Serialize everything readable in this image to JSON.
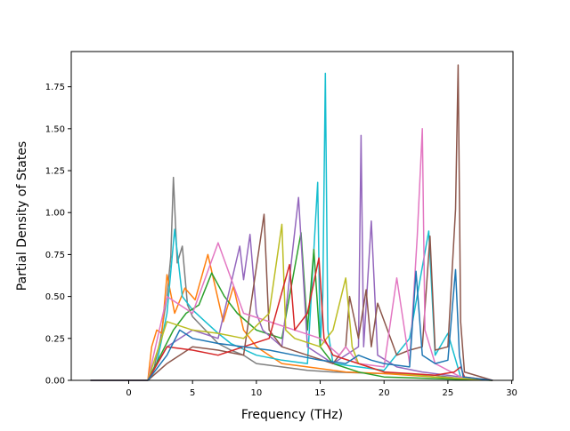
{
  "chart_data": {
    "type": "line",
    "title": "",
    "xlabel": "Frequency (THz)",
    "ylabel": "Partial Density of States",
    "xlim": [
      -4.5,
      30.1
    ],
    "ylim": [
      0.0,
      1.96
    ],
    "xticks": [
      0,
      5,
      10,
      15,
      20,
      25,
      30
    ],
    "yticks": [
      0.0,
      0.25,
      0.5,
      0.75,
      1.0,
      1.25,
      1.5,
      1.75
    ],
    "xtick_labels": [
      "0",
      "5",
      "10",
      "15",
      "20",
      "25",
      "30"
    ],
    "ytick_labels": [
      "0.00",
      "0.25",
      "0.50",
      "0.75",
      "1.00",
      "1.25",
      "1.50",
      "1.75"
    ],
    "grid": false,
    "legend": "none",
    "series_colors": [
      "#1f77b4",
      "#ff7f0e",
      "#2ca02c",
      "#d62728",
      "#9467bd",
      "#8c564b",
      "#e377c2",
      "#7f7f7f",
      "#bcbd22",
      "#17becf"
    ],
    "series": [
      {
        "color": "#7f7f7f",
        "x": [
          -3,
          1.5,
          2,
          2.5,
          3,
          3.3,
          3.5,
          3.8,
          4.2,
          4.6,
          5,
          6,
          7,
          8,
          9,
          10,
          12,
          14,
          16,
          20,
          24,
          26,
          28.5
        ],
        "y": [
          0,
          0,
          0.08,
          0.25,
          0.5,
          0.74,
          1.21,
          0.7,
          0.8,
          0.45,
          0.38,
          0.3,
          0.22,
          0.18,
          0.15,
          0.1,
          0.08,
          0.06,
          0.05,
          0.04,
          0.03,
          0.01,
          0
        ]
      },
      {
        "color": "#ff7f0e",
        "x": [
          -3,
          1.5,
          1.8,
          2.2,
          2.6,
          3,
          3.6,
          4.4,
          5.2,
          6.2,
          7.4,
          8.2,
          9,
          10,
          11,
          12,
          14,
          17,
          20,
          24,
          26,
          28.5
        ],
        "y": [
          0,
          0,
          0.2,
          0.3,
          0.28,
          0.63,
          0.4,
          0.55,
          0.48,
          0.75,
          0.35,
          0.56,
          0.3,
          0.2,
          0.15,
          0.1,
          0.08,
          0.05,
          0.04,
          0.02,
          0.01,
          0
        ]
      },
      {
        "color": "#17becf",
        "x": [
          -3,
          1.5,
          2.2,
          3,
          3.6,
          4.2,
          5,
          6,
          7,
          8,
          10,
          12,
          14,
          14.8,
          15,
          15.2,
          15.4,
          15.6,
          16,
          18,
          20,
          22,
          23.5,
          24,
          25,
          26,
          28.5
        ],
        "y": [
          0,
          0,
          0.1,
          0.4,
          0.9,
          0.5,
          0.42,
          0.35,
          0.28,
          0.22,
          0.15,
          0.12,
          0.1,
          1.18,
          0.2,
          0.5,
          1.83,
          0.3,
          0.1,
          0.08,
          0.06,
          0.25,
          0.89,
          0.15,
          0.28,
          0.02,
          0
        ]
      },
      {
        "color": "#2ca02c",
        "x": [
          -3,
          1.5,
          2.5,
          3.5,
          4.5,
          5.5,
          6.5,
          7.5,
          8.5,
          10,
          12,
          13.5,
          14,
          14.5,
          15,
          16,
          18,
          20,
          28.5
        ],
        "y": [
          0,
          0,
          0.15,
          0.3,
          0.4,
          0.45,
          0.64,
          0.5,
          0.4,
          0.3,
          0.25,
          0.88,
          0.3,
          0.78,
          0.2,
          0.1,
          0.05,
          0.02,
          0
        ]
      },
      {
        "color": "#9467bd",
        "x": [
          -3,
          1.5,
          3,
          5,
          7,
          8.7,
          9,
          9.5,
          10,
          10.5,
          12,
          13.3,
          14,
          16,
          18,
          18.2,
          18.4,
          19,
          19.5,
          21,
          23,
          26,
          28.5
        ],
        "y": [
          0,
          0,
          0.2,
          0.3,
          0.25,
          0.8,
          0.6,
          0.87,
          0.4,
          0.3,
          0.2,
          1.09,
          0.2,
          0.1,
          0.2,
          1.46,
          0.2,
          0.95,
          0.15,
          0.08,
          0.05,
          0.02,
          0
        ]
      },
      {
        "color": "#8c564b",
        "x": [
          -3,
          1.5,
          3,
          5,
          7,
          9,
          10.6,
          11,
          12,
          14,
          16,
          17,
          17.3,
          18,
          18.6,
          19,
          19.5,
          21,
          22,
          23,
          23.6,
          24,
          25,
          25.6,
          25.8,
          26,
          26.3,
          28.5
        ],
        "y": [
          0,
          0,
          0.1,
          0.2,
          0.18,
          0.15,
          0.99,
          0.3,
          0.2,
          0.15,
          0.1,
          0.2,
          0.5,
          0.25,
          0.54,
          0.2,
          0.46,
          0.15,
          0.18,
          0.2,
          0.86,
          0.18,
          0.2,
          1.02,
          1.88,
          0.35,
          0.05,
          0
        ]
      },
      {
        "color": "#e377c2",
        "x": [
          -3,
          1.5,
          3,
          5,
          7,
          9,
          11,
          13,
          15,
          16.5,
          17,
          18,
          20,
          21,
          22,
          22.6,
          23,
          23.2,
          24,
          26,
          28.5
        ],
        "y": [
          0,
          0,
          0.5,
          0.4,
          0.82,
          0.4,
          0.35,
          0.3,
          0.25,
          0.15,
          0.2,
          0.1,
          0.08,
          0.61,
          0.1,
          0.86,
          1.5,
          0.3,
          0.1,
          0.02,
          0
        ]
      },
      {
        "color": "#bcbd22",
        "x": [
          -3,
          1.5,
          3,
          5,
          7,
          9,
          11,
          12,
          12.3,
          13,
          15,
          16,
          17,
          17.5,
          18,
          20,
          24,
          28.5
        ],
        "y": [
          0,
          0,
          0.35,
          0.3,
          0.28,
          0.25,
          0.4,
          0.93,
          0.3,
          0.25,
          0.2,
          0.3,
          0.61,
          0.2,
          0.1,
          0.05,
          0.02,
          0
        ]
      },
      {
        "color": "#d62728",
        "x": [
          -3,
          1.5,
          3,
          5,
          7,
          9,
          11,
          12.6,
          13,
          14,
          14.9,
          15.3,
          16,
          18,
          20,
          22,
          24,
          25.5,
          26,
          26.3,
          28.5
        ],
        "y": [
          0,
          0,
          0.2,
          0.18,
          0.15,
          0.2,
          0.25,
          0.69,
          0.3,
          0.4,
          0.73,
          0.25,
          0.15,
          0.1,
          0.05,
          0.04,
          0.03,
          0.05,
          0.08,
          0.02,
          0
        ]
      },
      {
        "color": "#1f77b4",
        "x": [
          -3,
          1.5,
          3,
          4,
          5,
          7,
          9,
          11,
          13,
          15,
          17,
          18,
          19,
          20,
          22,
          22.5,
          23,
          24,
          25,
          25.6,
          25.9,
          26.2,
          28.5
        ],
        "y": [
          0,
          0,
          0.15,
          0.3,
          0.25,
          0.22,
          0.2,
          0.18,
          0.15,
          0.12,
          0.1,
          0.15,
          0.12,
          0.1,
          0.08,
          0.65,
          0.15,
          0.1,
          0.12,
          0.66,
          0.15,
          0.02,
          0
        ]
      }
    ]
  }
}
